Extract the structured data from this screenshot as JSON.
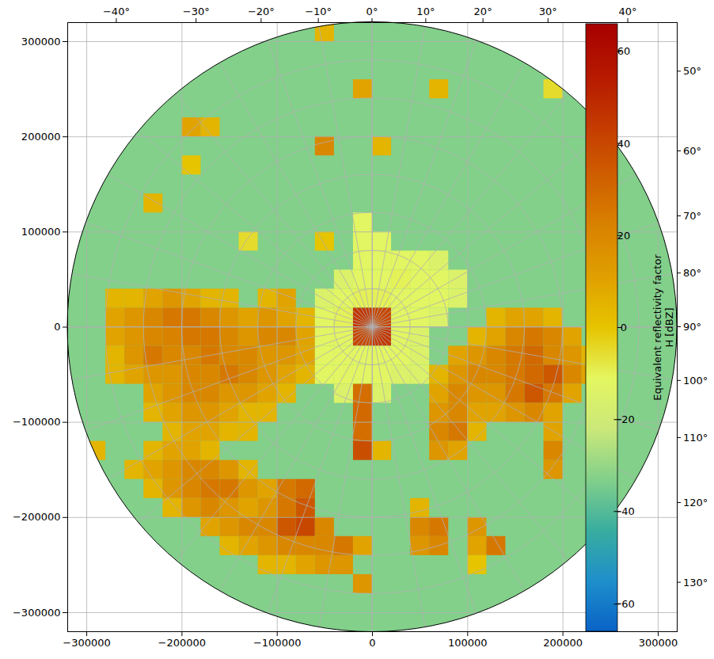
{
  "chart_data": {
    "type": "heatmap",
    "xlim": [
      -320000,
      320000
    ],
    "ylim": [
      -320000,
      320000
    ],
    "xticks": [
      {
        "value": -300000,
        "label": "−300000"
      },
      {
        "value": -200000,
        "label": "−200000"
      },
      {
        "value": -100000,
        "label": "−100000"
      },
      0,
      100000,
      200000,
      300000
    ],
    "yticks": [
      {
        "value": -300000,
        "label": "−300000"
      },
      {
        "value": -200000,
        "label": "−200000"
      },
      {
        "value": -100000,
        "label": "−100000"
      },
      0,
      100000,
      200000,
      300000
    ],
    "grid": true,
    "disk_radius": 320000,
    "background_value": -33,
    "cell_size": 20000,
    "cells": [
      [
        -270000,
        30000,
        5
      ],
      [
        -250000,
        30000,
        5
      ],
      [
        -230000,
        30000,
        10
      ],
      [
        -210000,
        30000,
        15
      ],
      [
        -190000,
        30000,
        10
      ],
      [
        -170000,
        30000,
        5
      ],
      [
        -150000,
        30000,
        5
      ],
      [
        -110000,
        30000,
        5
      ],
      [
        -90000,
        30000,
        10
      ],
      [
        -270000,
        10000,
        10
      ],
      [
        -250000,
        10000,
        15
      ],
      [
        -230000,
        10000,
        20
      ],
      [
        -210000,
        10000,
        25
      ],
      [
        -190000,
        10000,
        25
      ],
      [
        -170000,
        10000,
        20
      ],
      [
        -150000,
        10000,
        15
      ],
      [
        -130000,
        10000,
        10
      ],
      [
        -110000,
        10000,
        15
      ],
      [
        -90000,
        10000,
        10
      ],
      [
        -70000,
        10000,
        5
      ],
      [
        -270000,
        -10000,
        10
      ],
      [
        -250000,
        -10000,
        15
      ],
      [
        -230000,
        -10000,
        20
      ],
      [
        -210000,
        -10000,
        22
      ],
      [
        -190000,
        -10000,
        25
      ],
      [
        -170000,
        -10000,
        25
      ],
      [
        -150000,
        -10000,
        20
      ],
      [
        -130000,
        -10000,
        15
      ],
      [
        -110000,
        -10000,
        20
      ],
      [
        -90000,
        -10000,
        20
      ],
      [
        -70000,
        -10000,
        10
      ],
      [
        -270000,
        -30000,
        5
      ],
      [
        -250000,
        -30000,
        15
      ],
      [
        -230000,
        -30000,
        25
      ],
      [
        -210000,
        -30000,
        20
      ],
      [
        -190000,
        -30000,
        20
      ],
      [
        -170000,
        -30000,
        25
      ],
      [
        -150000,
        -30000,
        20
      ],
      [
        -130000,
        -30000,
        20
      ],
      [
        -110000,
        -30000,
        15
      ],
      [
        -90000,
        -30000,
        15
      ],
      [
        -70000,
        -30000,
        10
      ],
      [
        -270000,
        -50000,
        5
      ],
      [
        -250000,
        -50000,
        10
      ],
      [
        -230000,
        -50000,
        15
      ],
      [
        -210000,
        -50000,
        15
      ],
      [
        -190000,
        -50000,
        20
      ],
      [
        -170000,
        -50000,
        20
      ],
      [
        -150000,
        -50000,
        25
      ],
      [
        -130000,
        -50000,
        20
      ],
      [
        -110000,
        -50000,
        15
      ],
      [
        -90000,
        -50000,
        10
      ],
      [
        -70000,
        -50000,
        5
      ],
      [
        -230000,
        -70000,
        10
      ],
      [
        -210000,
        -70000,
        15
      ],
      [
        -190000,
        -70000,
        20
      ],
      [
        -170000,
        -70000,
        20
      ],
      [
        -150000,
        -70000,
        15
      ],
      [
        -130000,
        -70000,
        15
      ],
      [
        -110000,
        -70000,
        10
      ],
      [
        -90000,
        -70000,
        5
      ],
      [
        -230000,
        -90000,
        5
      ],
      [
        -210000,
        -90000,
        10
      ],
      [
        -190000,
        -90000,
        15
      ],
      [
        -170000,
        -90000,
        15
      ],
      [
        -150000,
        -90000,
        10
      ],
      [
        -130000,
        -90000,
        5
      ],
      [
        -110000,
        -90000,
        5
      ],
      [
        -210000,
        -110000,
        5
      ],
      [
        -190000,
        -110000,
        10
      ],
      [
        -170000,
        -110000,
        10
      ],
      [
        -150000,
        -110000,
        5
      ],
      [
        -130000,
        -110000,
        5
      ],
      [
        -10000,
        110000,
        -12
      ],
      [
        -10000,
        90000,
        -12
      ],
      [
        10000,
        90000,
        -12
      ],
      [
        -10000,
        70000,
        -12
      ],
      [
        10000,
        70000,
        -12
      ],
      [
        30000,
        70000,
        -12
      ],
      [
        50000,
        70000,
        -12
      ],
      [
        70000,
        70000,
        -15
      ],
      [
        -30000,
        50000,
        -15
      ],
      [
        -10000,
        50000,
        -12
      ],
      [
        10000,
        50000,
        -12
      ],
      [
        30000,
        50000,
        -10
      ],
      [
        50000,
        50000,
        -12
      ],
      [
        70000,
        50000,
        -12
      ],
      [
        90000,
        50000,
        -15
      ],
      [
        -50000,
        30000,
        -15
      ],
      [
        -30000,
        30000,
        -12
      ],
      [
        -10000,
        30000,
        -10
      ],
      [
        10000,
        30000,
        -10
      ],
      [
        30000,
        30000,
        -12
      ],
      [
        50000,
        30000,
        -12
      ],
      [
        70000,
        30000,
        -12
      ],
      [
        90000,
        30000,
        -15
      ],
      [
        -50000,
        10000,
        -12
      ],
      [
        -30000,
        10000,
        -10
      ],
      [
        -10000,
        10000,
        45
      ],
      [
        10000,
        10000,
        40
      ],
      [
        30000,
        10000,
        -12
      ],
      [
        50000,
        10000,
        -12
      ],
      [
        70000,
        10000,
        -15
      ],
      [
        -50000,
        -10000,
        -12
      ],
      [
        -30000,
        -10000,
        -12
      ],
      [
        -10000,
        -10000,
        40
      ],
      [
        10000,
        -10000,
        45
      ],
      [
        30000,
        -10000,
        -12
      ],
      [
        50000,
        -10000,
        -15
      ],
      [
        -50000,
        -30000,
        -12
      ],
      [
        -30000,
        -30000,
        -12
      ],
      [
        -10000,
        -30000,
        -12
      ],
      [
        10000,
        -30000,
        -12
      ],
      [
        30000,
        -30000,
        -12
      ],
      [
        50000,
        -30000,
        -15
      ],
      [
        -50000,
        -50000,
        -12
      ],
      [
        -30000,
        -50000,
        -12
      ],
      [
        -10000,
        -50000,
        -12
      ],
      [
        10000,
        -50000,
        -12
      ],
      [
        30000,
        -50000,
        -15
      ],
      [
        50000,
        -50000,
        -15
      ],
      [
        -30000,
        -70000,
        -15
      ],
      [
        10000,
        -70000,
        -15
      ],
      [
        -10000,
        -70000,
        28
      ],
      [
        -10000,
        -90000,
        30
      ],
      [
        -10000,
        -110000,
        28
      ],
      [
        -10000,
        -130000,
        38
      ],
      [
        130000,
        10000,
        5
      ],
      [
        150000,
        10000,
        10
      ],
      [
        170000,
        10000,
        10
      ],
      [
        190000,
        10000,
        5
      ],
      [
        110000,
        -10000,
        5
      ],
      [
        130000,
        -10000,
        10
      ],
      [
        150000,
        -10000,
        20
      ],
      [
        170000,
        -10000,
        25
      ],
      [
        190000,
        -10000,
        20
      ],
      [
        210000,
        -10000,
        10
      ],
      [
        90000,
        -30000,
        10
      ],
      [
        110000,
        -30000,
        15
      ],
      [
        130000,
        -30000,
        20
      ],
      [
        150000,
        -30000,
        25
      ],
      [
        170000,
        -30000,
        30
      ],
      [
        190000,
        -30000,
        20
      ],
      [
        210000,
        -30000,
        15
      ],
      [
        230000,
        -30000,
        5
      ],
      [
        70000,
        -50000,
        5
      ],
      [
        90000,
        -50000,
        15
      ],
      [
        110000,
        -50000,
        20
      ],
      [
        130000,
        -50000,
        20
      ],
      [
        150000,
        -50000,
        25
      ],
      [
        170000,
        -50000,
        30
      ],
      [
        190000,
        -50000,
        35
      ],
      [
        210000,
        -50000,
        20
      ],
      [
        230000,
        -50000,
        10
      ],
      [
        70000,
        -70000,
        10
      ],
      [
        90000,
        -70000,
        20
      ],
      [
        110000,
        -70000,
        15
      ],
      [
        130000,
        -70000,
        15
      ],
      [
        150000,
        -70000,
        25
      ],
      [
        170000,
        -70000,
        35
      ],
      [
        190000,
        -70000,
        25
      ],
      [
        210000,
        -70000,
        10
      ],
      [
        70000,
        -90000,
        15
      ],
      [
        90000,
        -90000,
        20
      ],
      [
        110000,
        -90000,
        10
      ],
      [
        130000,
        -90000,
        10
      ],
      [
        150000,
        -90000,
        15
      ],
      [
        170000,
        -90000,
        20
      ],
      [
        190000,
        -90000,
        10
      ],
      [
        70000,
        -110000,
        20
      ],
      [
        90000,
        -110000,
        25
      ],
      [
        110000,
        -110000,
        5
      ],
      [
        190000,
        -110000,
        10
      ],
      [
        70000,
        -130000,
        15
      ],
      [
        90000,
        -130000,
        10
      ],
      [
        190000,
        -130000,
        20
      ],
      [
        190000,
        -150000,
        15
      ],
      [
        -230000,
        -130000,
        5
      ],
      [
        -210000,
        -130000,
        10
      ],
      [
        -190000,
        -130000,
        10
      ],
      [
        -170000,
        -130000,
        5
      ],
      [
        -250000,
        -150000,
        5
      ],
      [
        -230000,
        -150000,
        10
      ],
      [
        -210000,
        -150000,
        15
      ],
      [
        -190000,
        -150000,
        20
      ],
      [
        -170000,
        -150000,
        20
      ],
      [
        -150000,
        -150000,
        15
      ],
      [
        -130000,
        -150000,
        5
      ],
      [
        -230000,
        -170000,
        5
      ],
      [
        -210000,
        -170000,
        15
      ],
      [
        -190000,
        -170000,
        20
      ],
      [
        -170000,
        -170000,
        25
      ],
      [
        -150000,
        -170000,
        25
      ],
      [
        -130000,
        -170000,
        15
      ],
      [
        -110000,
        -170000,
        10
      ],
      [
        -90000,
        -170000,
        25
      ],
      [
        -70000,
        -170000,
        30
      ],
      [
        -210000,
        -190000,
        5
      ],
      [
        -190000,
        -190000,
        15
      ],
      [
        -170000,
        -190000,
        20
      ],
      [
        -150000,
        -190000,
        15
      ],
      [
        -130000,
        -190000,
        10
      ],
      [
        -110000,
        -190000,
        15
      ],
      [
        -90000,
        -190000,
        25
      ],
      [
        -70000,
        -190000,
        35
      ],
      [
        -170000,
        -210000,
        10
      ],
      [
        -150000,
        -210000,
        15
      ],
      [
        -130000,
        -210000,
        20
      ],
      [
        -110000,
        -210000,
        20
      ],
      [
        -90000,
        -210000,
        35
      ],
      [
        -70000,
        -210000,
        40
      ],
      [
        -50000,
        -210000,
        20
      ],
      [
        -150000,
        -230000,
        5
      ],
      [
        -130000,
        -230000,
        10
      ],
      [
        -110000,
        -230000,
        15
      ],
      [
        -90000,
        -230000,
        20
      ],
      [
        -70000,
        -230000,
        20
      ],
      [
        -50000,
        -230000,
        20
      ],
      [
        -30000,
        -230000,
        25
      ],
      [
        -10000,
        -230000,
        10
      ],
      [
        -110000,
        -250000,
        5
      ],
      [
        -90000,
        -250000,
        5
      ],
      [
        -70000,
        -250000,
        10
      ],
      [
        -50000,
        -250000,
        15
      ],
      [
        -30000,
        -250000,
        15
      ],
      [
        50000,
        -190000,
        5
      ],
      [
        50000,
        -210000,
        20
      ],
      [
        70000,
        -210000,
        25
      ],
      [
        50000,
        -230000,
        15
      ],
      [
        70000,
        -230000,
        20
      ],
      [
        110000,
        -210000,
        15
      ],
      [
        110000,
        -230000,
        10
      ],
      [
        130000,
        -230000,
        25
      ],
      [
        70000,
        250000,
        5
      ],
      [
        -10000,
        250000,
        10
      ],
      [
        10000,
        190000,
        5
      ],
      [
        -50000,
        190000,
        20
      ],
      [
        -170000,
        210000,
        5
      ],
      [
        -190000,
        210000,
        10
      ],
      [
        -190000,
        170000,
        0
      ],
      [
        -50000,
        310000,
        5
      ],
      [
        190000,
        250000,
        -5
      ],
      [
        -50000,
        90000,
        0
      ],
      [
        -130000,
        90000,
        -5
      ],
      [
        -230000,
        130000,
        5
      ],
      [
        -10000,
        -270000,
        15
      ],
      [
        10000,
        -130000,
        5
      ],
      [
        110000,
        -250000,
        0
      ],
      [
        -290000,
        -130000,
        5
      ]
    ],
    "azimuth_lines": [
      0,
      10,
      20,
      30,
      40,
      50,
      60,
      70,
      80,
      90,
      100,
      110,
      120,
      130,
      140,
      150,
      160,
      170,
      180,
      190,
      200,
      210,
      220,
      230,
      240,
      250,
      260,
      270,
      280,
      290,
      300,
      310,
      320,
      330,
      340,
      350
    ],
    "range_rings": [
      40000,
      80000,
      120000,
      160000,
      200000,
      240000,
      280000
    ],
    "top_azimuth_ticks": [
      {
        "value": -40,
        "label": "−40°"
      },
      {
        "value": -30,
        "label": "−30°"
      },
      {
        "value": -20,
        "label": "−20°"
      },
      {
        "value": -10,
        "label": "−10°"
      },
      {
        "value": 0,
        "label": "0°"
      },
      {
        "value": 10,
        "label": "10°"
      },
      {
        "value": 20,
        "label": "20°"
      },
      {
        "value": 30,
        "label": "30°"
      },
      {
        "value": 40,
        "label": "40°"
      }
    ],
    "right_azimuth_ticks": [
      {
        "value": 50,
        "label": "50°"
      },
      {
        "value": 60,
        "label": "60°"
      },
      {
        "value": 70,
        "label": "70°"
      },
      {
        "value": 80,
        "label": "80°"
      },
      {
        "value": 90,
        "label": "90°"
      },
      {
        "value": 100,
        "label": "100°"
      },
      {
        "value": 110,
        "label": "110°"
      },
      {
        "value": 120,
        "label": "120°"
      },
      {
        "value": 130,
        "label": "130°"
      }
    ],
    "colorbar": {
      "label": [
        "Equivalent reflectivity factor",
        "H [dBZ]"
      ],
      "range": [
        -66,
        66
      ],
      "ticks": [
        {
          "value": -60,
          "label": "−60"
        },
        {
          "value": -40,
          "label": "−40"
        },
        {
          "value": -20,
          "label": "−20"
        },
        0,
        20,
        40,
        60
      ]
    }
  }
}
